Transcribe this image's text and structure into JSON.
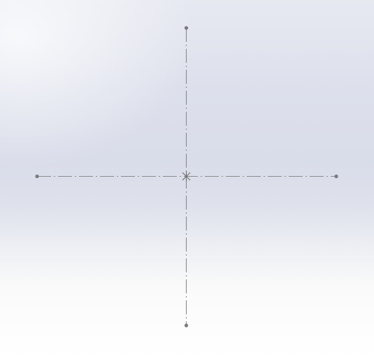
{
  "viewport": {
    "background_top": "#e7e9f1",
    "background_mid": "#d9dce9",
    "background_bottom": "#ffffff"
  },
  "sketch": {
    "line_color": "#8a8a8a",
    "endpoint_color": "#7a7a7a",
    "line_style": "dash-dot centerline",
    "entities": [
      "vertical-centerline",
      "horizontal-centerline",
      "origin-point"
    ]
  }
}
